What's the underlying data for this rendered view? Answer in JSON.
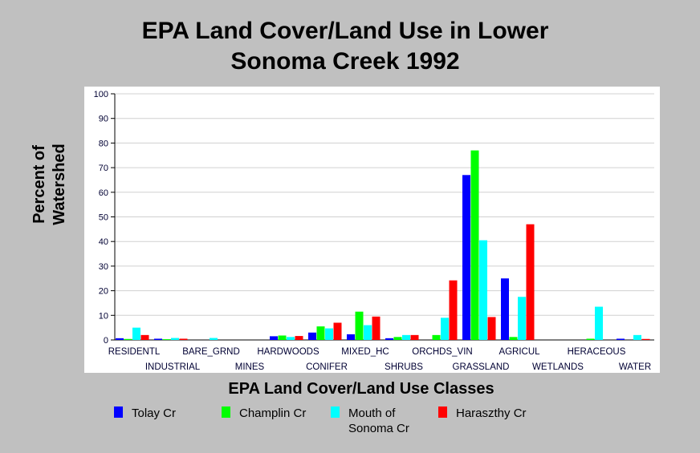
{
  "chart_data": {
    "type": "bar",
    "title_line1": "EPA Land Cover/Land Use in Lower",
    "title_line2": "Sonoma Creek 1992",
    "xlabel": "EPA Land Cover/Land Use Classes",
    "ylabel_line1": "Percent of",
    "ylabel_line2": "Watershed",
    "ylim": [
      0,
      100
    ],
    "yticks": [
      "0",
      "10",
      "20",
      "30",
      "40",
      "50",
      "60",
      "70",
      "80",
      "90",
      "100"
    ],
    "grid": true,
    "legend_position": "bottom",
    "categories": [
      "RESIDENTL",
      "INDUSTRIAL",
      "BARE_GRND",
      "MINES",
      "HARDWOODS",
      "CONIFER",
      "MIXED_HC",
      "SHRUBS",
      "ORCHDS_VIN",
      "GRASSLAND",
      "AGRICUL",
      "WETLANDS",
      "HERACEOUS",
      "WATER"
    ],
    "series": [
      {
        "name": "Tolay Cr",
        "color": "#0000ff",
        "values": [
          0.7,
          0.5,
          0,
          0,
          1.5,
          3,
          2.3,
          0.7,
          0,
          67,
          25,
          0,
          0,
          0.5
        ]
      },
      {
        "name": "Champlin Cr",
        "color": "#00ff00",
        "values": [
          0.4,
          0.3,
          0,
          0,
          1.8,
          5.5,
          11.5,
          1.2,
          2,
          77,
          1.2,
          0,
          0.5,
          0
        ]
      },
      {
        "name": "Mouth of Sonoma Cr",
        "color": "#00ffff",
        "values": [
          5,
          0.8,
          0.8,
          0,
          1.2,
          4.7,
          6,
          2,
          9,
          40.5,
          17.5,
          0,
          13.5,
          2
        ]
      },
      {
        "name": "Haraszthy Cr",
        "color": "#ff0000",
        "values": [
          2,
          0.5,
          0,
          0,
          1.6,
          7,
          9.5,
          2,
          24.2,
          9.3,
          47,
          0,
          0,
          0.4
        ]
      }
    ],
    "legend_labels": {
      "s1": "Tolay Cr",
      "s2": "Champlin Cr",
      "s3_line1": "Mouth of",
      "s3_line2": "Sonoma Cr",
      "s4": "Haraszthy Cr"
    }
  }
}
